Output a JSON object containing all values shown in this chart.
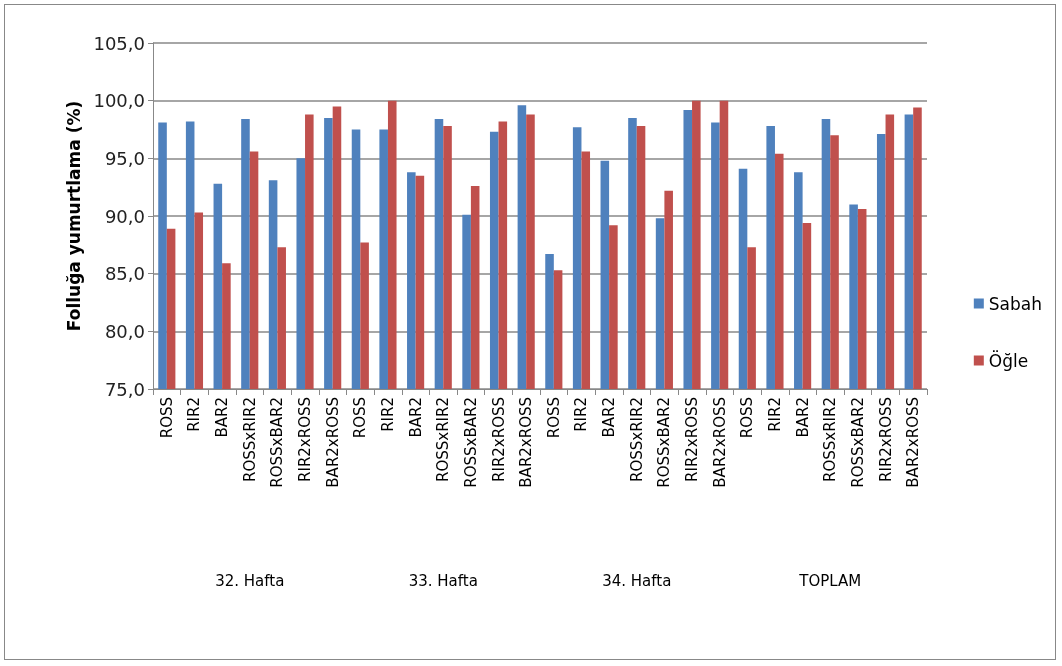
{
  "chart_data": {
    "type": "bar",
    "ylabel": "Folluğa yumurtlama (%)",
    "categories": [
      "ROSS",
      "RIR2",
      "BAR2",
      "ROSSxRIR2",
      "ROSSxBAR2",
      "RIR2xROSS",
      "BAR2xROSS",
      "ROSS",
      "RIR2",
      "BAR2",
      "ROSSxRIR2",
      "ROSSxBAR2",
      "RIR2xROSS",
      "BAR2xROSS",
      "ROSS",
      "RIR2",
      "BAR2",
      "ROSSxRIR2",
      "ROSSxBAR2",
      "RIR2xROSS",
      "BAR2xROSS",
      "ROSS",
      "RIR2",
      "BAR2",
      "ROSSxRIR2",
      "ROSSxBAR2",
      "RIR2xROSS",
      "BAR2xROSS"
    ],
    "series": [
      {
        "name": "Sabah",
        "color": "#4f81bd",
        "values": [
          98.1,
          98.2,
          92.8,
          98.4,
          93.1,
          95.0,
          98.5,
          97.5,
          97.5,
          93.8,
          98.4,
          90.1,
          97.3,
          99.6,
          86.7,
          97.7,
          94.8,
          98.5,
          89.8,
          99.2,
          98.1,
          94.1,
          97.8,
          93.8,
          98.4,
          91.0,
          97.1,
          98.8
        ]
      },
      {
        "name": "Öğle",
        "color": "#c0504d",
        "values": [
          88.9,
          90.3,
          85.9,
          95.6,
          87.3,
          98.8,
          99.5,
          87.7,
          100.0,
          93.5,
          97.8,
          92.6,
          98.2,
          98.8,
          85.3,
          95.6,
          89.2,
          97.8,
          92.2,
          100.0,
          100.0,
          87.3,
          95.4,
          89.4,
          97.0,
          90.6,
          98.8,
          99.4
        ]
      }
    ],
    "annotations": [
      "32. Hafta",
      "33. Hafta",
      "34. Hafta",
      "TOPLAM"
    ],
    "ylim": [
      75,
      105
    ],
    "yticks": [
      {
        "value": 75,
        "label": "75,0"
      },
      {
        "value": 80,
        "label": "80,0"
      },
      {
        "value": 85,
        "label": "85,0"
      },
      {
        "value": 90,
        "label": "90,0"
      },
      {
        "value": 95,
        "label": "95,0"
      },
      {
        "value": 100,
        "label": "100,0"
      },
      {
        "value": 105,
        "label": "105,0"
      }
    ],
    "grid": "y",
    "legend": "right"
  }
}
